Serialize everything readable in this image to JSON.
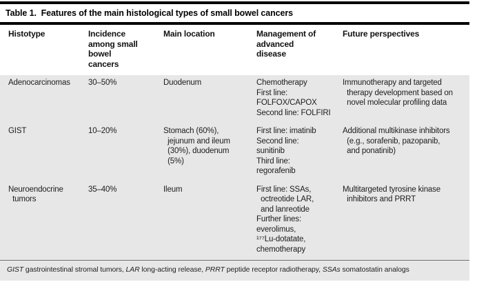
{
  "table": {
    "title": "Table 1.  Features of the main histological types of small bowel cancers",
    "columns": {
      "histotype": "Histotype",
      "incidence": "Incidence\namong small\nbowel\ncancers",
      "location": "Main location",
      "management": "Management of\nadvanced\ndisease",
      "future": "Future perspectives"
    },
    "rows": [
      {
        "histotype": "Adenocarcinomas",
        "incidence": "30–50%",
        "location": "Duodenum",
        "management": "Chemotherapy\nFirst line:\nFOLFOX/CAPOX\nSecond line: FOLFIRI",
        "future": "Immunotherapy and targeted\n  therapy development based on\n  novel molecular profiling data"
      },
      {
        "histotype": "GIST",
        "incidence": "10–20%",
        "location": "Stomach (60%),\n  jejunum and ileum\n  (30%), duodenum\n  (5%)",
        "management": "First line: imatinib\nSecond line:\nsunitinib\nThird line:\nregorafenib",
        "future": "Additional multikinase inhibitors\n  (e.g., sorafenib, pazopanib,\n  and ponatinib)"
      },
      {
        "histotype": "Neuroendocrine\n  tumors",
        "incidence": "35–40%",
        "location": "Ileum",
        "management": "First line: SSAs,\n  octreotide LAR,\n  and lanreotide\nFurther lines:\neverolimus,\n¹⁷⁷Lu-dotatate,\nchemotherapy",
        "future": "Multitargeted tyrosine kinase\n  inhibitors and PRRT"
      }
    ],
    "footnote": [
      {
        "abbr": "GIST",
        "text": " gastrointestinal stromal tumors, "
      },
      {
        "abbr": "LAR",
        "text": " long-acting release, "
      },
      {
        "abbr": "PRRT",
        "text": " peptide receptor radiotherapy, "
      },
      {
        "abbr": "SSAs",
        "text": " somatostatin analogs"
      }
    ]
  },
  "colors": {
    "body_shading": "#e7e7e7",
    "rule": "#000000",
    "text": "#1c1c1c"
  }
}
